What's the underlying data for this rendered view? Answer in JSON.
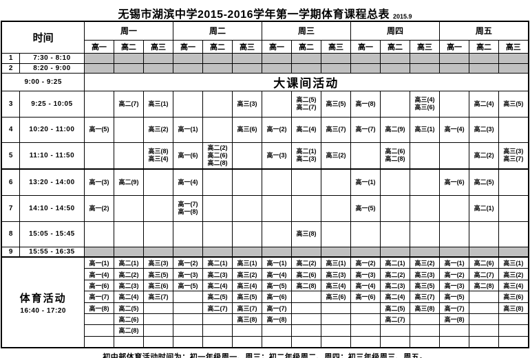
{
  "title": {
    "text": "无锡市湖滨中学2015-2016学年第一学期体育课程总表",
    "date": "2015.9"
  },
  "header": {
    "time_label": "时间",
    "days": [
      "周一",
      "周二",
      "周三",
      "周四",
      "周五"
    ],
    "grades": [
      "高一",
      "高二",
      "高三"
    ]
  },
  "schedule": {
    "rows": [
      {
        "num": "1",
        "time": "7:30 - 8:10",
        "shaded": true
      },
      {
        "num": "2",
        "time": "8:20 - 9:00",
        "shaded": true
      },
      {
        "num": "",
        "time": "9:00 - 9:25",
        "merged_label": "大课间活动"
      },
      {
        "num": "3",
        "time": "9:25 - 10:05",
        "cells": [
          [],
          [
            "高二(7)"
          ],
          [
            "高三(1)"
          ],
          [],
          [],
          [
            "高三(3)"
          ],
          [],
          [
            "高二(5)",
            "高二(7)"
          ],
          [
            "高三(5)"
          ],
          [
            "高一(8)"
          ],
          [],
          [
            "高三(4)",
            "高三(6)"
          ],
          [],
          [
            "高二(4)"
          ],
          [
            "高三(5)"
          ]
        ]
      },
      {
        "num": "4",
        "time": "10:20 - 11:00",
        "cells": [
          [
            "高一(5)"
          ],
          [],
          [
            "高三(2)"
          ],
          [
            "高一(1)"
          ],
          [],
          [
            "高三(6)"
          ],
          [
            "高一(2)"
          ],
          [
            "高二(4)"
          ],
          [
            "高三(7)"
          ],
          [
            "高一(7)"
          ],
          [
            "高二(9)"
          ],
          [
            "高三(1)"
          ],
          [
            "高一(4)"
          ],
          [
            "高二(3)"
          ],
          []
        ]
      },
      {
        "num": "5",
        "time": "11:10 - 11:50",
        "cells": [
          [],
          [],
          [
            "高三(8)",
            "高三(4)"
          ],
          [
            "高一(6)"
          ],
          [
            "高二(2)",
            "高二(6)",
            "高二(8)"
          ],
          [],
          [
            "高一(3)"
          ],
          [
            "高二(1)",
            "高二(3)"
          ],
          [
            "高三(2)"
          ],
          [],
          [
            "高二(6)",
            "高二(8)"
          ],
          [],
          [],
          [
            "高二(2)"
          ],
          [
            "高三(3)",
            "高三(7)"
          ]
        ]
      },
      {
        "num": "6",
        "time": "13:20 - 14:00",
        "cells": [
          [
            "高一(3)"
          ],
          [
            "高二(9)"
          ],
          [],
          [
            "高一(4)"
          ],
          [],
          [],
          [],
          [],
          [],
          [
            "高一(1)"
          ],
          [],
          [],
          [
            "高一(6)"
          ],
          [
            "高二(5)"
          ],
          []
        ]
      },
      {
        "num": "7",
        "time": "14:10 - 14:50",
        "cells": [
          [
            "高一(2)"
          ],
          [],
          [],
          [
            "高一(7)",
            "高一(8)"
          ],
          [],
          [],
          [],
          [],
          [],
          [
            "高一(5)"
          ],
          [],
          [],
          [],
          [
            "高二(1)"
          ],
          []
        ]
      },
      {
        "num": "8",
        "time": "15:05 - 15:45",
        "cells": [
          [],
          [],
          [],
          [],
          [],
          [],
          [],
          [
            "高三(8)"
          ],
          [],
          [],
          [],
          [],
          [],
          [],
          []
        ]
      },
      {
        "num": "9",
        "time": "15:55 - 16:35",
        "shaded": true
      }
    ]
  },
  "activity": {
    "label": "体育活动",
    "time": "16:40 - 17:20",
    "row_count": 8,
    "columns": [
      [
        "高一(1)",
        "高一(4)",
        "高一(6)",
        "高一(7)",
        "高一(8)"
      ],
      [
        "高二(1)",
        "高二(2)",
        "高二(3)",
        "高二(4)",
        "高二(5)",
        "高二(6)",
        "高二(8)"
      ],
      [
        "高三(3)",
        "高三(5)",
        "高三(6)",
        "高三(7)"
      ],
      [
        "高一(2)",
        "高一(3)",
        "高一(5)"
      ],
      [
        "高二(1)",
        "高二(3)",
        "高二(4)",
        "高二(5)",
        "高二(7)"
      ],
      [
        "高三(1)",
        "高三(2)",
        "高三(4)",
        "高三(5)",
        "高三(7)",
        "高三(8)"
      ],
      [
        "高一(1)",
        "高一(4)",
        "高一(5)",
        "高一(6)",
        "高一(7)",
        "高一(8)"
      ],
      [
        "高二(2)",
        "高二(6)",
        "高二(8)"
      ],
      [
        "高三(1)",
        "高三(3)",
        "高三(4)",
        "高三(6)"
      ],
      [
        "高一(2)",
        "高一(3)",
        "高一(4)",
        "高一(6)"
      ],
      [
        "高二(1)",
        "高二(2)",
        "高二(3)",
        "高二(4)",
        "高二(5)",
        "高二(7)"
      ],
      [
        "高三(2)",
        "高三(3)",
        "高三(5)",
        "高三(7)",
        "高三(8)"
      ],
      [
        "高一(1)",
        "高一(2)",
        "高一(3)",
        "高一(5)",
        "高一(7)",
        "高一(8)"
      ],
      [
        "高二(6)",
        "高二(7)",
        "高二(8)"
      ],
      [
        "高三(1)",
        "高三(2)",
        "高三(4)",
        "高三(6)",
        "高三(8)"
      ]
    ]
  },
  "footer": "初中部体育活动时间为：初一年级周一、周三；初二年级周二、周四；初三年级周三、周五。",
  "colors": {
    "shaded_row": "#c0c0c0",
    "border": "#000000",
    "background": "#ffffff"
  }
}
